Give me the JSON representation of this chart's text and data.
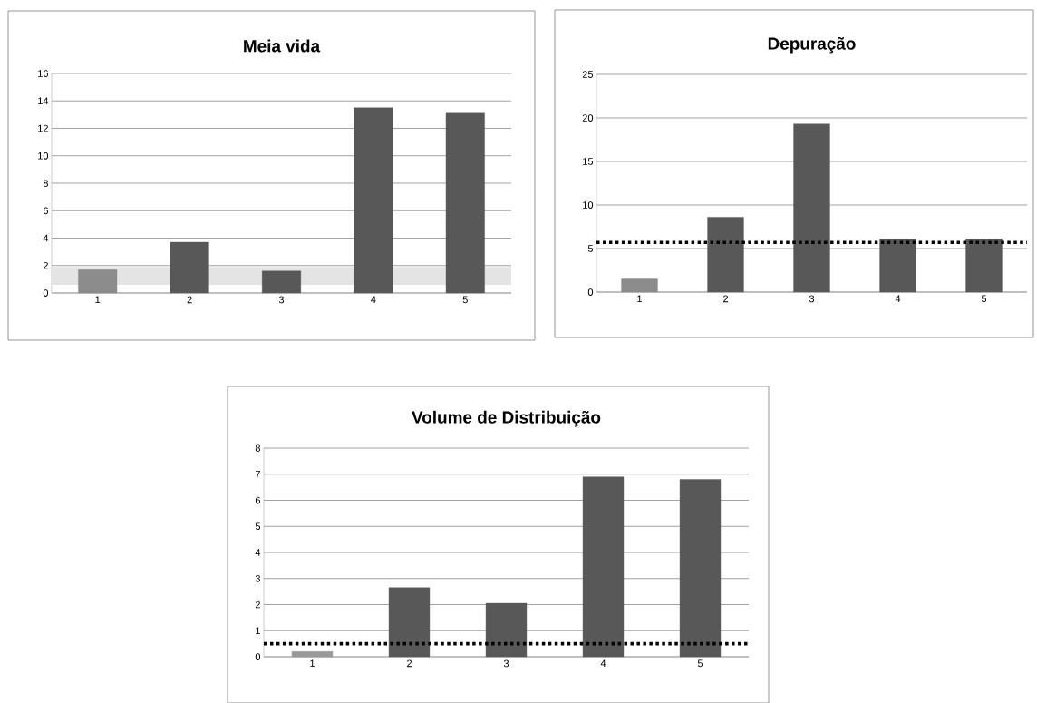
{
  "chart_data": [
    {
      "type": "bar",
      "title": "Meia vida",
      "categories": [
        "1",
        "2",
        "3",
        "4",
        "5"
      ],
      "values": [
        1.7,
        3.7,
        1.6,
        13.5,
        13.1
      ],
      "colors": [
        "#8c8c8c",
        "#585858",
        "#585858",
        "#585858",
        "#585858"
      ],
      "ylim": [
        0,
        16
      ],
      "yticks": [
        0,
        2,
        4,
        6,
        8,
        10,
        12,
        14,
        16
      ],
      "grid": "y",
      "bands": [
        {
          "axis": "y",
          "from": 0.6,
          "to": 1.9,
          "color": "#e4e4e4"
        }
      ]
    },
    {
      "type": "bar",
      "title": "Depuração",
      "categories": [
        "1",
        "2",
        "3",
        "4",
        "5"
      ],
      "values": [
        1.5,
        8.6,
        19.3,
        6.1,
        6.1
      ],
      "colors": [
        "#8c8c8c",
        "#585858",
        "#585858",
        "#585858",
        "#585858"
      ],
      "ylim": [
        0,
        25
      ],
      "yticks": [
        0,
        5,
        10,
        15,
        20,
        25
      ],
      "grid": "y",
      "ref_lines": [
        {
          "axis": "y",
          "value": 5.7,
          "color": "#000000",
          "line_style": "dotted"
        }
      ]
    },
    {
      "type": "bar",
      "title": "Volume de Distribuição",
      "categories": [
        "1",
        "2",
        "3",
        "4",
        "5"
      ],
      "values": [
        0.2,
        2.65,
        2.05,
        6.9,
        6.8
      ],
      "colors": [
        "#9a9a9a",
        "#585858",
        "#585858",
        "#585858",
        "#585858"
      ],
      "ylim": [
        0,
        8
      ],
      "yticks": [
        0,
        1,
        2,
        3,
        4,
        5,
        6,
        7,
        8
      ],
      "grid": "y",
      "ref_lines": [
        {
          "axis": "y",
          "value": 0.5,
          "color": "#000000",
          "line_style": "dotted"
        }
      ]
    }
  ]
}
